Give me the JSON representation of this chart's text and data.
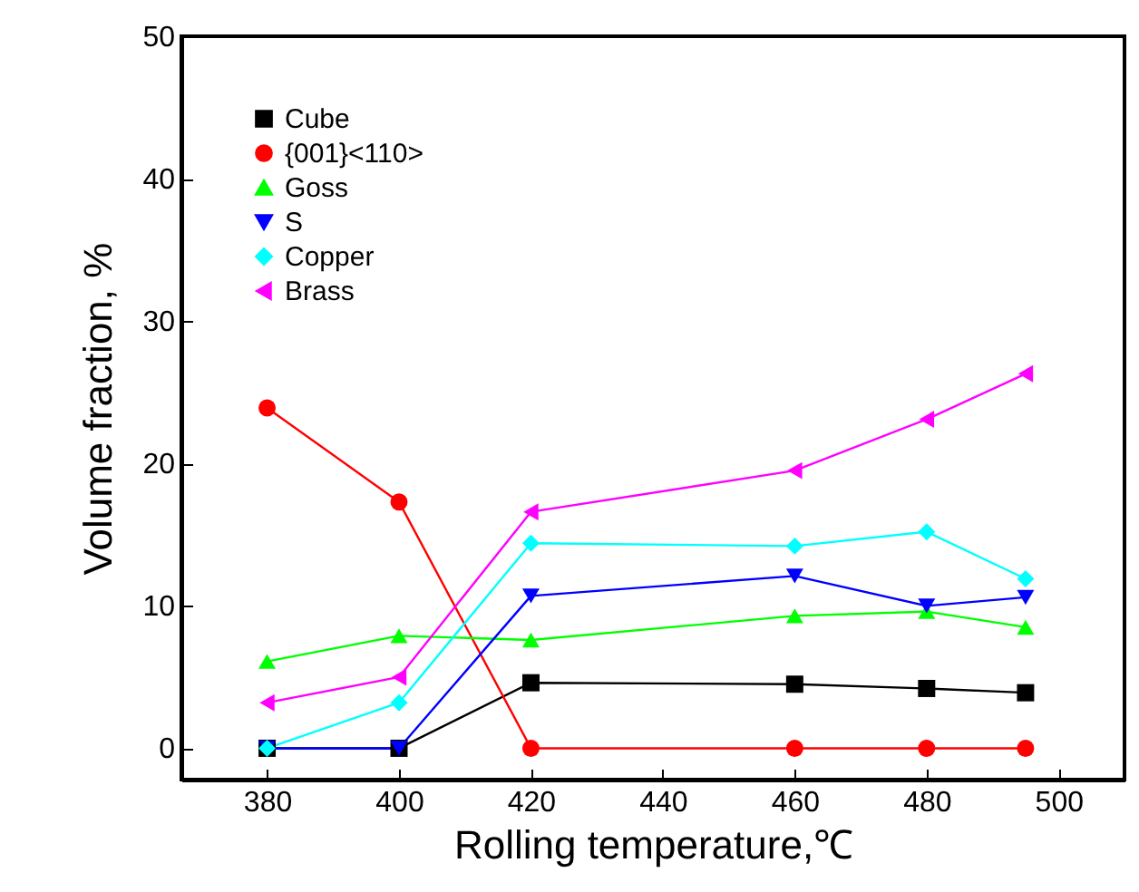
{
  "chart_data": {
    "type": "line",
    "xlabel": "Rolling temperature,℃",
    "ylabel": "Volume fraction, %",
    "x": [
      380,
      400,
      420,
      460,
      480,
      495
    ],
    "xlim": [
      367,
      510
    ],
    "xticks": [
      380,
      400,
      420,
      440,
      460,
      480,
      500
    ],
    "ylim": [
      -2.2,
      50
    ],
    "yticks": [
      0,
      10,
      20,
      30,
      40,
      50
    ],
    "grid": false,
    "legend": "top left",
    "line_style": "solid",
    "series": [
      {
        "name": "Cube",
        "color": "#000000",
        "marker": "square",
        "values": [
          0,
          0,
          4.6,
          4.5,
          4.2,
          3.9
        ]
      },
      {
        "name": "{001}<110>",
        "color": "#ff0000",
        "marker": "circle",
        "values": [
          23.9,
          17.3,
          0,
          0,
          0,
          0
        ]
      },
      {
        "name": "Goss",
        "color": "#00ff00",
        "marker": "triangle-up",
        "values": [
          6.1,
          7.9,
          7.6,
          9.3,
          9.6,
          8.5
        ]
      },
      {
        "name": "S",
        "color": "#0000ff",
        "marker": "triangle-down",
        "values": [
          0,
          0,
          10.7,
          12.1,
          10.0,
          10.6
        ]
      },
      {
        "name": "Copper",
        "color": "#00ffff",
        "marker": "diamond",
        "values": [
          0,
          3.2,
          14.4,
          14.2,
          15.2,
          11.9
        ]
      },
      {
        "name": "Brass",
        "color": "#ff00ff",
        "marker": "triangle-left",
        "values": [
          3.2,
          5.0,
          16.6,
          19.5,
          23.1,
          26.3
        ]
      }
    ]
  }
}
